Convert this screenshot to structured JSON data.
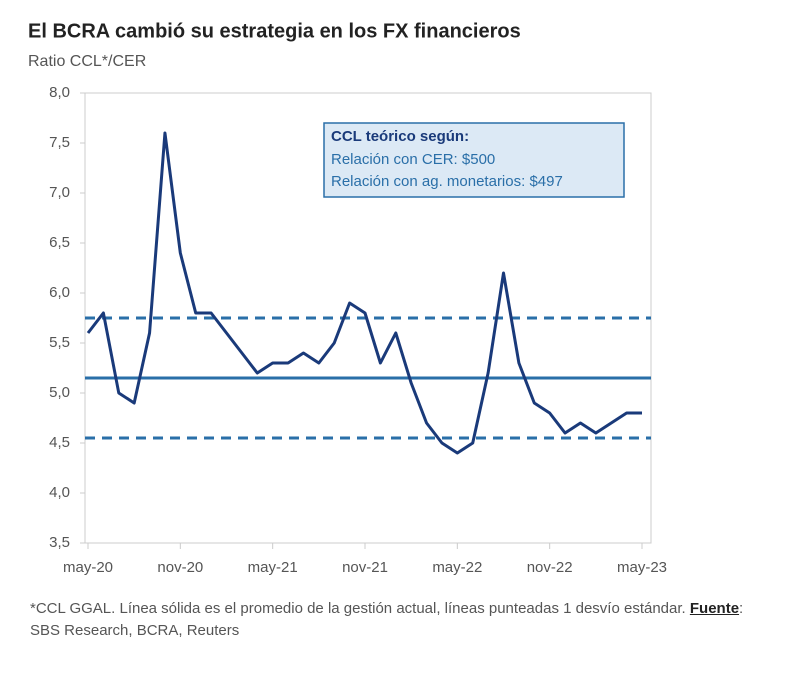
{
  "chart_data": {
    "type": "line",
    "title": "El BCRA cambió su estrategia en los FX financieros",
    "subtitle": "Ratio CCL*/CER",
    "x": [
      "2020-05",
      "2020-06",
      "2020-07",
      "2020-08",
      "2020-09",
      "2020-10",
      "2020-11",
      "2020-12",
      "2021-01",
      "2021-02",
      "2021-03",
      "2021-04",
      "2021-05",
      "2021-06",
      "2021-07",
      "2021-08",
      "2021-09",
      "2021-10",
      "2021-11",
      "2021-12",
      "2022-01",
      "2022-02",
      "2022-03",
      "2022-04",
      "2022-05",
      "2022-06",
      "2022-07",
      "2022-08",
      "2022-09",
      "2022-10",
      "2022-11",
      "2022-12",
      "2023-01",
      "2023-02",
      "2023-03",
      "2023-04",
      "2023-05"
    ],
    "series": [
      {
        "name": "Ratio CCL*/CER",
        "color": "#1a3a7a",
        "values": [
          5.6,
          5.8,
          5.0,
          4.9,
          5.6,
          7.6,
          6.4,
          5.8,
          5.8,
          5.6,
          5.4,
          5.2,
          5.3,
          5.3,
          5.4,
          5.3,
          5.5,
          5.9,
          5.8,
          5.3,
          5.6,
          5.1,
          4.7,
          4.5,
          4.4,
          4.5,
          5.2,
          6.2,
          5.3,
          4.9,
          4.8,
          4.6,
          4.7,
          4.6,
          4.7,
          4.8,
          4.8
        ]
      }
    ],
    "ylim": [
      3.5,
      8
    ],
    "yticks": [
      {
        "value": 3.5,
        "label": "3,5"
      },
      {
        "value": 4,
        "label": "4,0"
      },
      {
        "value": 4.5,
        "label": "4,5"
      },
      {
        "value": 5,
        "label": "5,0"
      },
      {
        "value": 5.5,
        "label": "5,5"
      },
      {
        "value": 6,
        "label": "6,0"
      },
      {
        "value": 6.5,
        "label": "6,5"
      },
      {
        "value": 7,
        "label": "7,0"
      },
      {
        "value": 7.5,
        "label": "7,5"
      },
      {
        "value": 8,
        "label": "8,0"
      }
    ],
    "xticks": [
      {
        "value": "2020-05",
        "label": "may-20"
      },
      {
        "value": "2020-11",
        "label": "nov-20"
      },
      {
        "value": "2021-05",
        "label": "may-21"
      },
      {
        "value": "2021-11",
        "label": "nov-21"
      },
      {
        "value": "2022-05",
        "label": "may-22"
      },
      {
        "value": "2022-11",
        "label": "nov-22"
      },
      {
        "value": "2023-05",
        "label": "may-23"
      }
    ],
    "reference_lines": [
      {
        "value": 5.15,
        "style": "solid",
        "color": "#2a6fa8"
      },
      {
        "value": 5.75,
        "style": "dashed",
        "color": "#2a6fa8"
      },
      {
        "value": 4.55,
        "style": "dashed",
        "color": "#2a6fa8"
      }
    ],
    "annotation": {
      "title": "CCL teórico según:",
      "lines": [
        "Relación con CER: $500",
        "Relación con ag. monetarios: $497"
      ]
    },
    "footnote": {
      "text": "*CCL GGAL. Línea sólida es el promedio de la gestión actual, líneas punteadas 1 desvío estándar.",
      "source_label": "Fuente",
      "source": ": SBS Research, BCRA, Reuters"
    }
  }
}
